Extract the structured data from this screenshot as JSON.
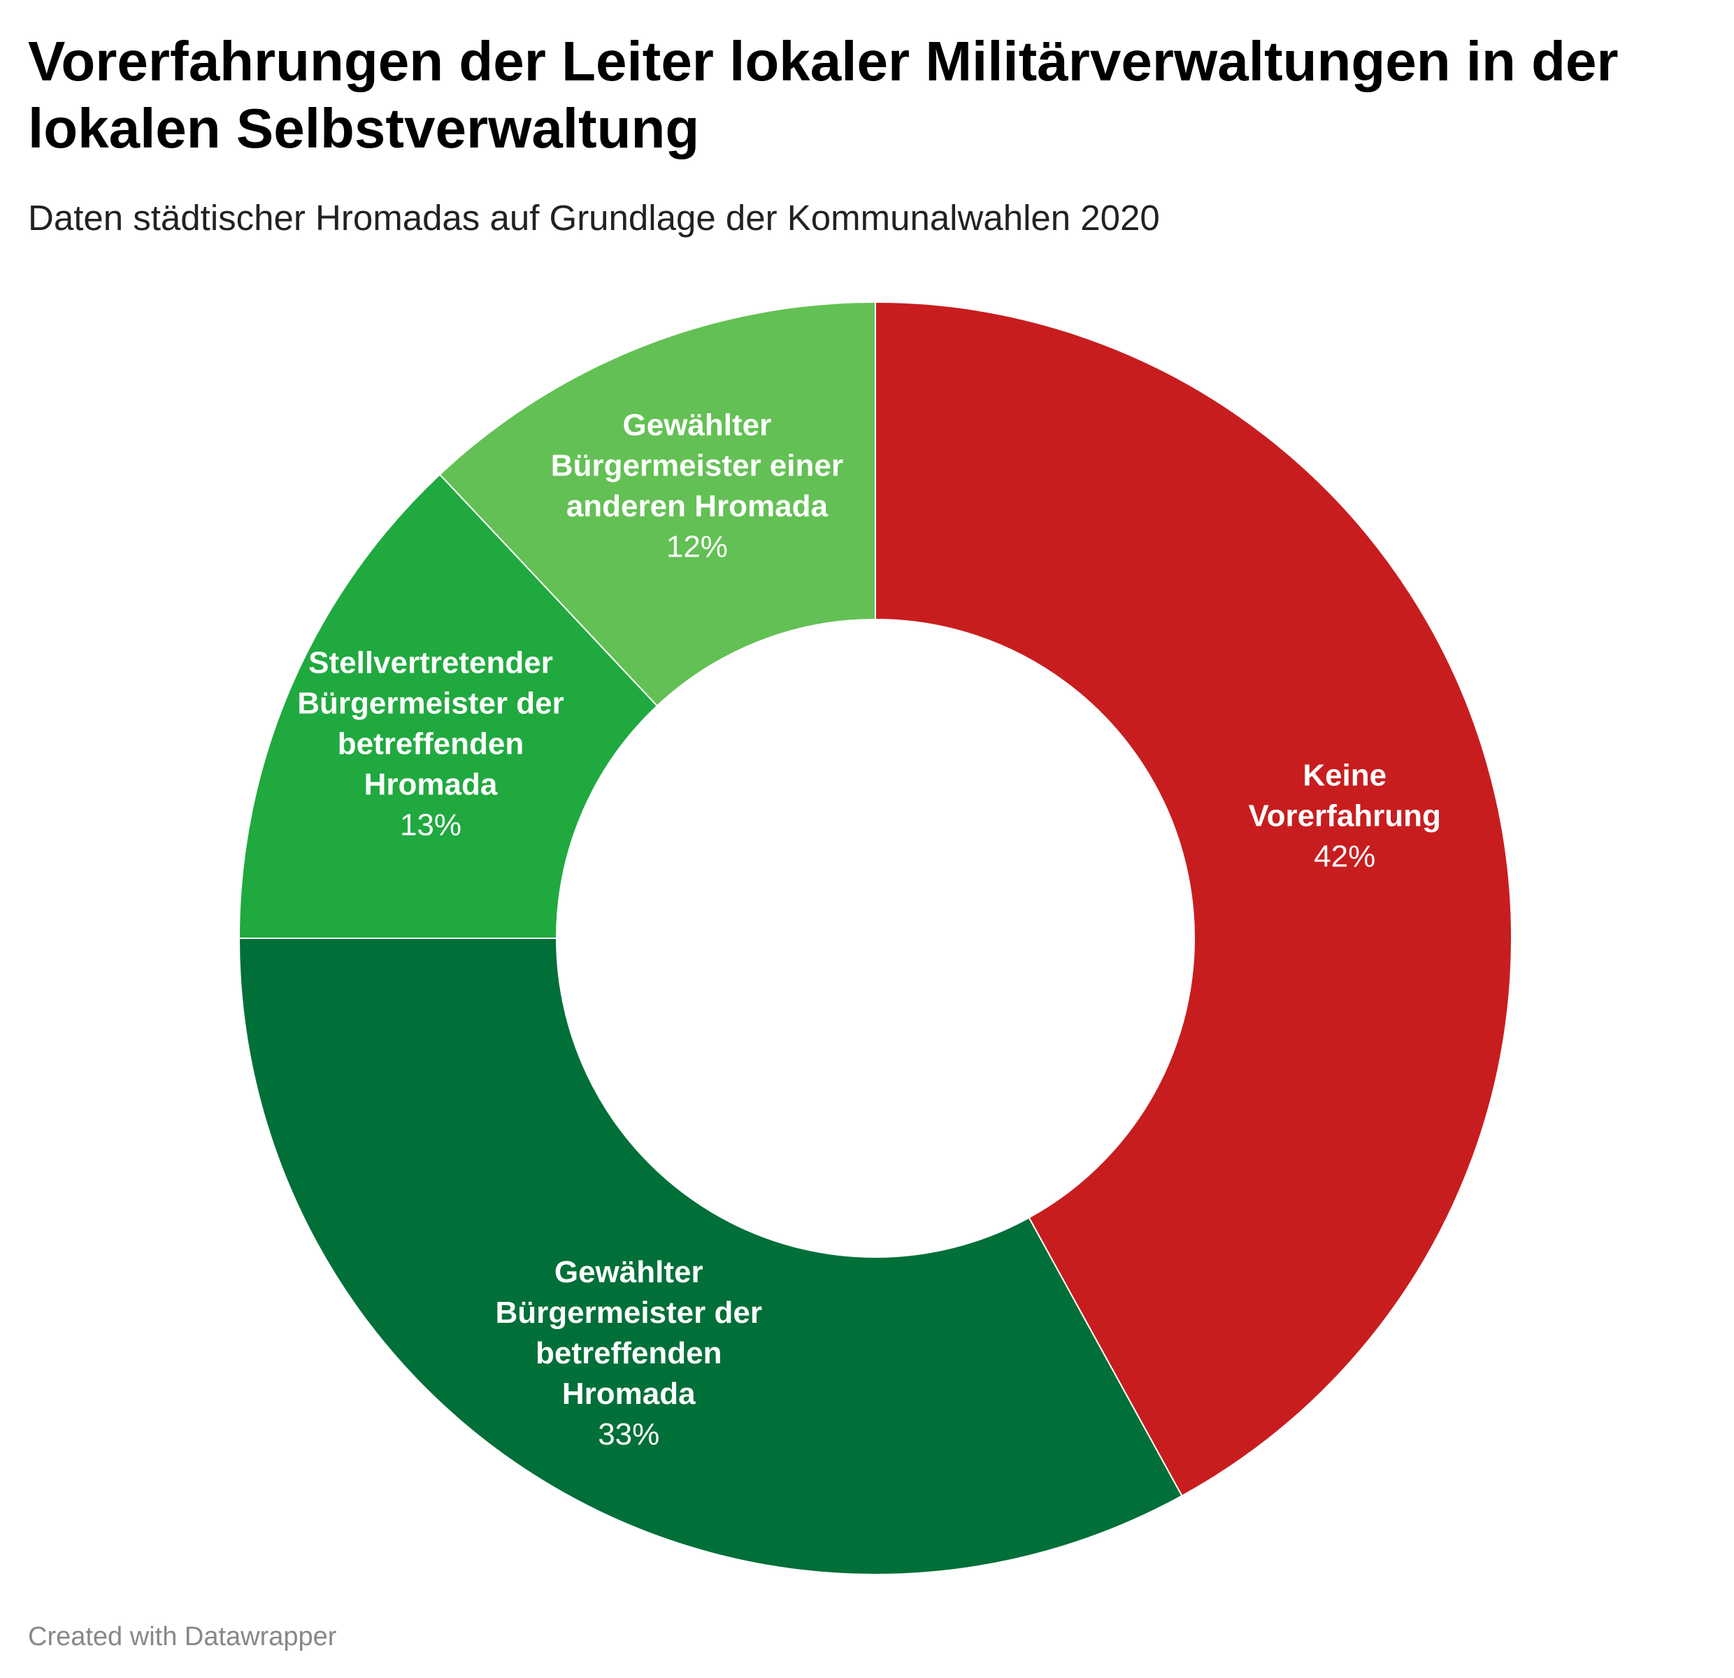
{
  "header": {
    "title": "Vorerfahrungen der Leiter lokaler Militärverwaltungen in der lokalen Selbstverwaltung",
    "subtitle": "Daten städtischer Hromadas auf Grundlage der Kommunalwahlen 2020"
  },
  "footer": {
    "credit": "Created with Datawrapper"
  },
  "chart_data": {
    "type": "pie",
    "variant": "donut",
    "title": "Vorerfahrungen der Leiter lokaler Militärverwaltungen in der lokalen Selbstverwaltung",
    "subtitle": "Daten städtischer Hromadas auf Grundlage der Kommunalwahlen 2020",
    "start_angle_deg": 0,
    "direction": "clockwise",
    "slices": [
      {
        "label": "Keine Vorerfahrung",
        "label_lines": [
          "Keine",
          "Vorerfahrung"
        ],
        "value": 42,
        "value_label": "42%",
        "color": "#c81d1f"
      },
      {
        "label": "Gewählter Bürgermeister der betreffenden Hromada",
        "label_lines": [
          "Gewählter",
          "Bürgermeister der",
          "betreffenden",
          "Hromada"
        ],
        "value": 33,
        "value_label": "33%",
        "color": "#006f38"
      },
      {
        "label": "Stellvertretender Bürgermeister der betreffenden Hromada",
        "label_lines": [
          "Stellvertretender",
          "Bürgermeister der",
          "betreffenden",
          "Hromada"
        ],
        "value": 13,
        "value_label": "13%",
        "color": "#20a93f"
      },
      {
        "label": "Gewählter Bürgermeister einer anderen Hromada",
        "label_lines": [
          "Gewählter",
          "Bürgermeister einer",
          "anderen Hromada"
        ],
        "value": 12,
        "value_label": "12%",
        "color": "#63c054"
      }
    ]
  }
}
